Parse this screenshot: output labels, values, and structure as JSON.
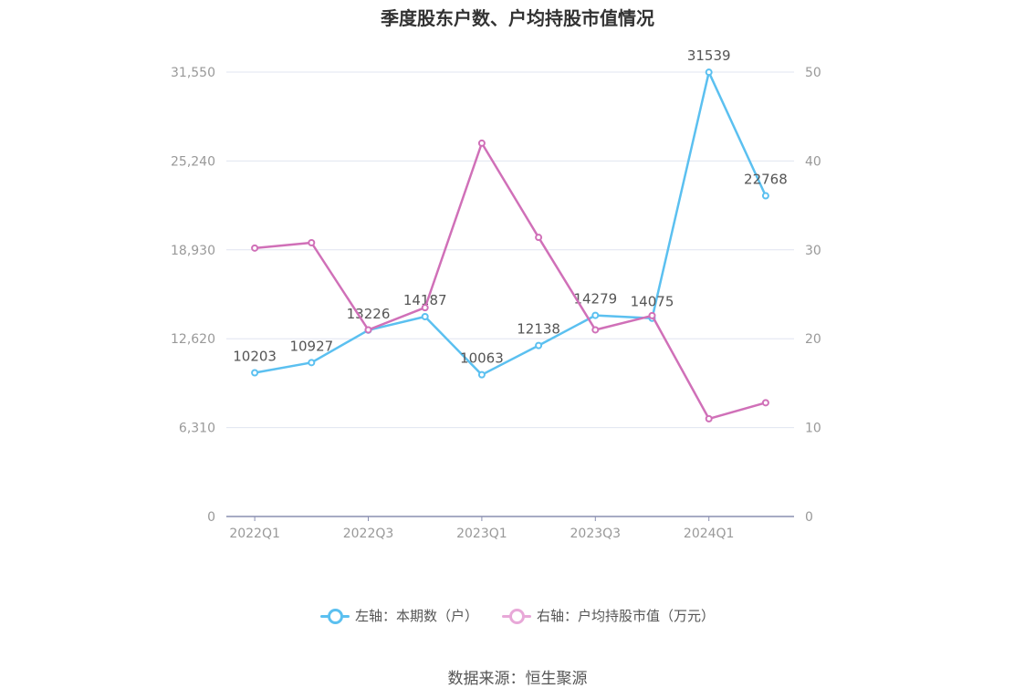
{
  "title": "季度股东户数、户均持股市值情况",
  "source": "数据来源：恒生聚源",
  "legend": {
    "left_label": "左轴：本期数（户）",
    "right_label": "右轴：户均持股市值（万元）"
  },
  "colors": {
    "left_series": "#5bc0f0",
    "right_series": "#d070b8",
    "grid": "#e0e4f0",
    "axis": "#8a8fb0",
    "tick_text": "#999999",
    "label_text": "#555555"
  },
  "chart_data": {
    "type": "line",
    "title": "季度股东户数、户均持股市值情况",
    "categories": [
      "2022Q1",
      "2022Q2",
      "2022Q3",
      "2022Q4",
      "2023Q1",
      "2023Q2",
      "2023Q3",
      "2023Q4",
      "2024Q1",
      "2024Q2"
    ],
    "x_tick_labels": [
      "2022Q1",
      "2022Q3",
      "2023Q1",
      "2023Q3",
      "2024Q1"
    ],
    "y_left": {
      "ticks": [
        "0",
        "6,310",
        "12,620",
        "18,930",
        "25,240",
        "31,550"
      ],
      "min": 0,
      "max": 31550
    },
    "y_right": {
      "ticks": [
        "0",
        "10",
        "20",
        "30",
        "40",
        "50"
      ],
      "min": 0,
      "max": 50
    },
    "grid": true,
    "legend_position": "bottom",
    "series": [
      {
        "name": "左轴：本期数（户）",
        "axis": "left",
        "values": [
          10203,
          10927,
          13226,
          14187,
          10063,
          12138,
          14279,
          14075,
          31539,
          22768
        ],
        "labels": [
          "10203",
          "10927",
          "13226",
          "14187",
          "10063",
          "12138",
          "14279",
          "14075",
          "31539",
          "22768"
        ]
      },
      {
        "name": "右轴：户均持股市值（万元）",
        "axis": "right",
        "values": [
          30.2,
          30.8,
          21.0,
          23.5,
          42.0,
          31.4,
          21.0,
          22.6,
          11.0,
          12.8
        ]
      }
    ]
  }
}
